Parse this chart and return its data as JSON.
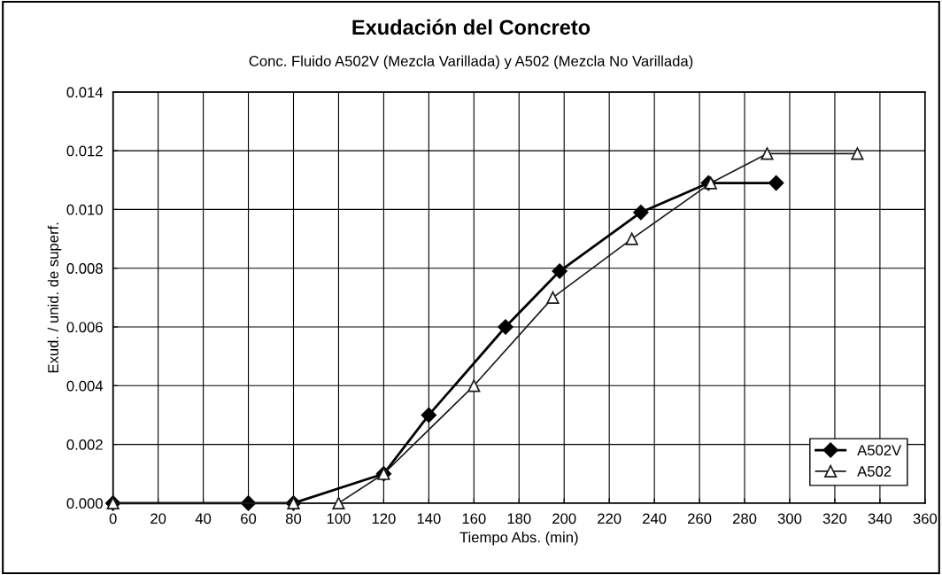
{
  "chart_data": {
    "type": "line",
    "title": "Exudación del Concreto",
    "subtitle": "Conc. Fluido A502V (Mezcla Varillada) y A502 (Mezcla No Varillada)",
    "xlabel": "Tiempo Abs. (min)",
    "ylabel": "Exud. / unid. de superf.",
    "xlim": [
      0,
      360
    ],
    "xticks": [
      0,
      20,
      40,
      60,
      80,
      100,
      120,
      140,
      160,
      180,
      200,
      220,
      240,
      260,
      280,
      300,
      320,
      340,
      360
    ],
    "ylim": [
      0,
      0.014
    ],
    "yticks": [
      {
        "value": 0,
        "label": "0.000"
      },
      {
        "value": 0.002,
        "label": "0.002"
      },
      {
        "value": 0.004,
        "label": "0.004"
      },
      {
        "value": 0.006,
        "label": "0.006"
      },
      {
        "value": 0.008,
        "label": "0.008"
      },
      {
        "value": 0.01,
        "label": "0.010"
      },
      {
        "value": 0.012,
        "label": "0.012"
      },
      {
        "value": 0.014,
        "label": "0.014"
      }
    ],
    "grid": true,
    "legend": "bottom right",
    "line_style": "solid",
    "series": [
      {
        "name": "A502V",
        "color": "#000000",
        "marker": "diamond",
        "x": [
          0,
          60,
          80,
          120,
          140,
          174,
          198,
          234,
          264,
          294
        ],
        "values": [
          0,
          0,
          0,
          0.001,
          0.003,
          0.006,
          0.0079,
          0.0099,
          0.0109,
          0.0109
        ]
      },
      {
        "name": "A502",
        "color": "#1a1a1a",
        "marker": "triangle",
        "x": [
          0,
          80,
          100,
          120,
          160,
          195,
          230,
          265,
          290,
          330
        ],
        "values": [
          0,
          0,
          0,
          0.001,
          0.004,
          0.007,
          0.009,
          0.0109,
          0.0119,
          0.0119
        ]
      }
    ]
  }
}
